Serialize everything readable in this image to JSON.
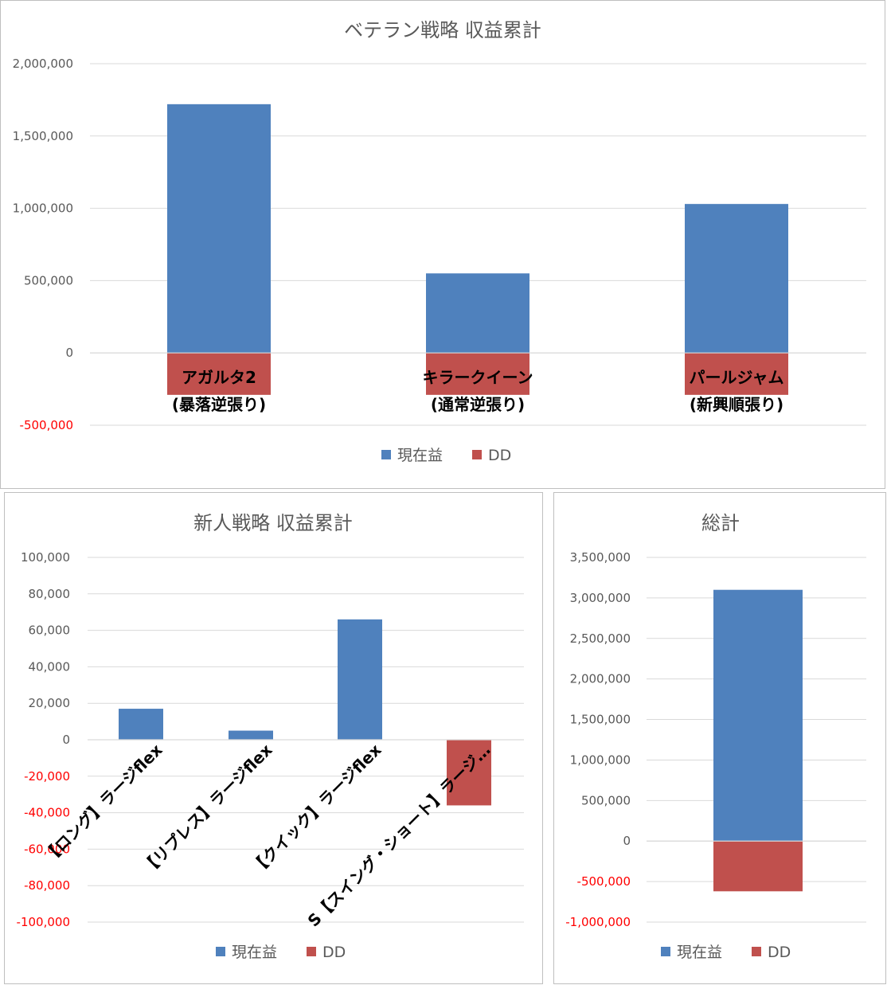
{
  "colors": {
    "profit": "#4F81BD",
    "dd": "#C0504D",
    "grid": "#d9d9d9",
    "axis_text": "#595959",
    "negative_text": "#FF0000",
    "border": "#bfbfbf"
  },
  "legend": {
    "profit": "現在益",
    "dd": "DD"
  },
  "chart_data": [
    {
      "type": "bar",
      "title": "ベテラン戦略 収益累計",
      "categories": [
        [
          "アガルタ2",
          "(暴落逆張り)"
        ],
        [
          "キラークイーン",
          "(通常逆張り)"
        ],
        [
          "パールジャム",
          "(新興順張り)"
        ]
      ],
      "series": [
        {
          "name": "現在益",
          "values": [
            1720000,
            550000,
            1030000
          ]
        },
        {
          "name": "DD",
          "values": [
            -290000,
            -290000,
            -290000
          ]
        }
      ],
      "ylim": [
        -500000,
        2000000
      ],
      "yticks": [
        "2,000,000",
        "1,500,000",
        "1,000,000",
        "500,000",
        "0",
        "-500,000"
      ],
      "grid": true,
      "legend_position": "bottom"
    },
    {
      "type": "bar",
      "title": "新人戦略 収益累計",
      "categories": [
        "【ロング】ラージflex",
        "【リプレス】ラージflex",
        "【クイック】ラージflex",
        "S【スイング・ショート】ラージ…"
      ],
      "series": [
        {
          "name": "現在益",
          "values": [
            17000,
            5000,
            66000,
            0
          ]
        },
        {
          "name": "DD",
          "values": [
            0,
            0,
            0,
            -36000
          ]
        }
      ],
      "ylim": [
        -100000,
        100000
      ],
      "yticks": [
        "100,000",
        "80,000",
        "60,000",
        "40,000",
        "20,000",
        "0",
        "-20,000",
        "-40,000",
        "-60,000",
        "-80,000",
        "-100,000"
      ],
      "grid": true,
      "legend_position": "bottom"
    },
    {
      "type": "bar",
      "title": "総計",
      "categories": [
        ""
      ],
      "series": [
        {
          "name": "現在益",
          "values": [
            3100000
          ]
        },
        {
          "name": "DD",
          "values": [
            -620000
          ]
        }
      ],
      "ylim": [
        -1000000,
        3500000
      ],
      "yticks": [
        "3,500,000",
        "3,000,000",
        "2,500,000",
        "2,000,000",
        "1,500,000",
        "1,000,000",
        "500,000",
        "0",
        "-500,000",
        "-1,000,000"
      ],
      "grid": true,
      "legend_position": "bottom"
    }
  ]
}
